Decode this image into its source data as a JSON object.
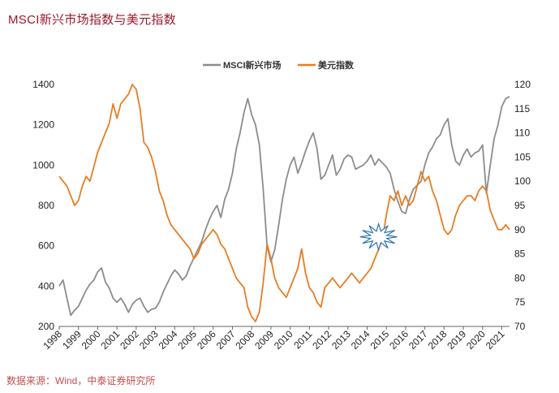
{
  "header": {
    "title": "MSCI新兴市场指数与美元指数"
  },
  "footer": {
    "source": "数据来源：Wind，中泰证券研究所"
  },
  "chart_data": {
    "type": "line",
    "title": "MSCI新兴市场指数与美元指数",
    "x_categories": [
      "1998",
      "1999",
      "2000",
      "2001",
      "2002",
      "2003",
      "2004",
      "2005",
      "2006",
      "2007",
      "2008",
      "2009",
      "2010",
      "2011",
      "2012",
      "2013",
      "2014",
      "2015",
      "2016",
      "2017",
      "2018",
      "2019",
      "2020",
      "2021"
    ],
    "x_range": [
      1998.0,
      2021.4
    ],
    "y_left": {
      "ticks": [
        200,
        400,
        600,
        800,
        1000,
        1200,
        1400
      ],
      "range": [
        200,
        1400
      ]
    },
    "y_right": {
      "ticks": [
        70,
        75,
        80,
        85,
        90,
        95,
        100,
        105,
        110,
        115,
        120
      ],
      "range": [
        70,
        120
      ]
    },
    "annotations": [
      {
        "shape": "starburst",
        "x": 2014.6,
        "y_right": 88.5
      }
    ],
    "series": [
      {
        "name": "MSCI新兴市场",
        "axis": "left",
        "color": "#8c8c8c",
        "x": [
          1998.0,
          1998.2,
          1998.4,
          1998.6,
          1998.8,
          1999.0,
          1999.2,
          1999.4,
          1999.6,
          1999.8,
          2000.0,
          2000.2,
          2000.4,
          2000.6,
          2000.8,
          2001.0,
          2001.2,
          2001.4,
          2001.6,
          2001.8,
          2002.0,
          2002.2,
          2002.4,
          2002.6,
          2002.8,
          2003.0,
          2003.2,
          2003.4,
          2003.6,
          2003.8,
          2004.0,
          2004.2,
          2004.4,
          2004.6,
          2004.8,
          2005.0,
          2005.2,
          2005.4,
          2005.6,
          2005.8,
          2006.0,
          2006.2,
          2006.4,
          2006.6,
          2006.8,
          2007.0,
          2007.2,
          2007.4,
          2007.6,
          2007.8,
          2008.0,
          2008.2,
          2008.4,
          2008.6,
          2008.8,
          2009.0,
          2009.2,
          2009.4,
          2009.6,
          2009.8,
          2010.0,
          2010.2,
          2010.4,
          2010.6,
          2010.8,
          2011.0,
          2011.2,
          2011.4,
          2011.6,
          2011.8,
          2012.0,
          2012.2,
          2012.4,
          2012.6,
          2012.8,
          2013.0,
          2013.2,
          2013.4,
          2013.6,
          2013.8,
          2014.0,
          2014.2,
          2014.4,
          2014.6,
          2014.8,
          2015.0,
          2015.2,
          2015.4,
          2015.6,
          2015.8,
          2016.0,
          2016.2,
          2016.4,
          2016.6,
          2016.8,
          2017.0,
          2017.2,
          2017.4,
          2017.6,
          2017.8,
          2018.0,
          2018.2,
          2018.4,
          2018.6,
          2018.8,
          2019.0,
          2019.2,
          2019.4,
          2019.6,
          2019.8,
          2020.0,
          2020.2,
          2020.4,
          2020.6,
          2020.8,
          2021.0,
          2021.2,
          2021.4
        ],
        "values": [
          400,
          430,
          340,
          255,
          280,
          300,
          340,
          380,
          410,
          430,
          470,
          490,
          420,
          390,
          340,
          320,
          340,
          310,
          270,
          310,
          330,
          340,
          300,
          270,
          285,
          290,
          320,
          370,
          410,
          450,
          480,
          460,
          430,
          450,
          500,
          540,
          580,
          620,
          680,
          730,
          770,
          800,
          740,
          830,
          880,
          960,
          1080,
          1160,
          1260,
          1330,
          1250,
          1200,
          1100,
          880,
          600,
          520,
          580,
          700,
          830,
          930,
          1000,
          1040,
          960,
          1010,
          1070,
          1120,
          1160,
          1080,
          930,
          950,
          1000,
          1050,
          950,
          980,
          1030,
          1050,
          1040,
          980,
          990,
          1000,
          1020,
          1050,
          1000,
          1030,
          1010,
          990,
          960,
          880,
          820,
          770,
          760,
          830,
          880,
          900,
          920,
          1000,
          1060,
          1090,
          1130,
          1150,
          1200,
          1230,
          1100,
          1020,
          1000,
          1050,
          1080,
          1040,
          1060,
          1070,
          1100,
          860,
          1000,
          1130,
          1200,
          1290,
          1330,
          1340
        ],
        "visible_x_ticks_note": "annual tick marks"
      },
      {
        "name": "美元指数",
        "axis": "right",
        "color": "#e87d21",
        "x": [
          1998.0,
          1998.2,
          1998.4,
          1998.6,
          1998.8,
          1999.0,
          1999.2,
          1999.4,
          1999.6,
          1999.8,
          2000.0,
          2000.2,
          2000.4,
          2000.6,
          2000.8,
          2001.0,
          2001.2,
          2001.4,
          2001.6,
          2001.8,
          2002.0,
          2002.2,
          2002.4,
          2002.6,
          2002.8,
          2003.0,
          2003.2,
          2003.4,
          2003.6,
          2003.8,
          2004.0,
          2004.2,
          2004.4,
          2004.6,
          2004.8,
          2005.0,
          2005.2,
          2005.4,
          2005.6,
          2005.8,
          2006.0,
          2006.2,
          2006.4,
          2006.6,
          2006.8,
          2007.0,
          2007.2,
          2007.4,
          2007.6,
          2007.8,
          2008.0,
          2008.2,
          2008.4,
          2008.6,
          2008.8,
          2009.0,
          2009.2,
          2009.4,
          2009.6,
          2009.8,
          2010.0,
          2010.2,
          2010.4,
          2010.6,
          2010.8,
          2011.0,
          2011.2,
          2011.4,
          2011.6,
          2011.8,
          2012.0,
          2012.2,
          2012.4,
          2012.6,
          2012.8,
          2013.0,
          2013.2,
          2013.4,
          2013.6,
          2013.8,
          2014.0,
          2014.2,
          2014.4,
          2014.6,
          2014.8,
          2015.0,
          2015.2,
          2015.4,
          2015.6,
          2015.8,
          2016.0,
          2016.2,
          2016.4,
          2016.6,
          2016.8,
          2017.0,
          2017.2,
          2017.4,
          2017.6,
          2017.8,
          2018.0,
          2018.2,
          2018.4,
          2018.6,
          2018.8,
          2019.0,
          2019.2,
          2019.4,
          2019.6,
          2019.8,
          2020.0,
          2020.2,
          2020.4,
          2020.6,
          2020.8,
          2021.0,
          2021.2,
          2021.4
        ],
        "values": [
          101,
          100,
          99,
          97,
          95,
          96,
          99,
          101,
          100,
          103,
          106,
          108,
          110,
          112,
          116,
          113,
          116,
          117,
          118,
          120,
          119,
          115,
          108,
          107,
          105,
          102,
          98,
          96,
          93,
          91,
          90,
          89,
          88,
          87,
          86,
          84,
          85,
          87,
          88,
          89,
          90,
          89,
          87,
          86,
          84,
          82,
          80,
          79,
          78,
          74,
          72,
          71,
          73,
          79,
          87,
          84,
          80,
          78,
          77,
          76,
          78,
          80,
          82,
          86,
          81,
          78,
          77,
          75,
          74,
          78,
          79,
          80,
          79,
          78,
          79,
          80,
          81,
          80,
          79,
          80,
          81,
          82,
          84,
          86,
          88,
          93,
          97,
          96,
          98,
          95,
          97,
          95,
          96,
          99,
          102,
          100,
          101,
          98,
          96,
          93,
          90,
          89,
          90,
          93,
          95,
          96,
          97,
          97,
          96,
          98,
          99,
          98,
          94,
          92,
          90,
          90,
          91,
          90
        ]
      }
    ]
  }
}
